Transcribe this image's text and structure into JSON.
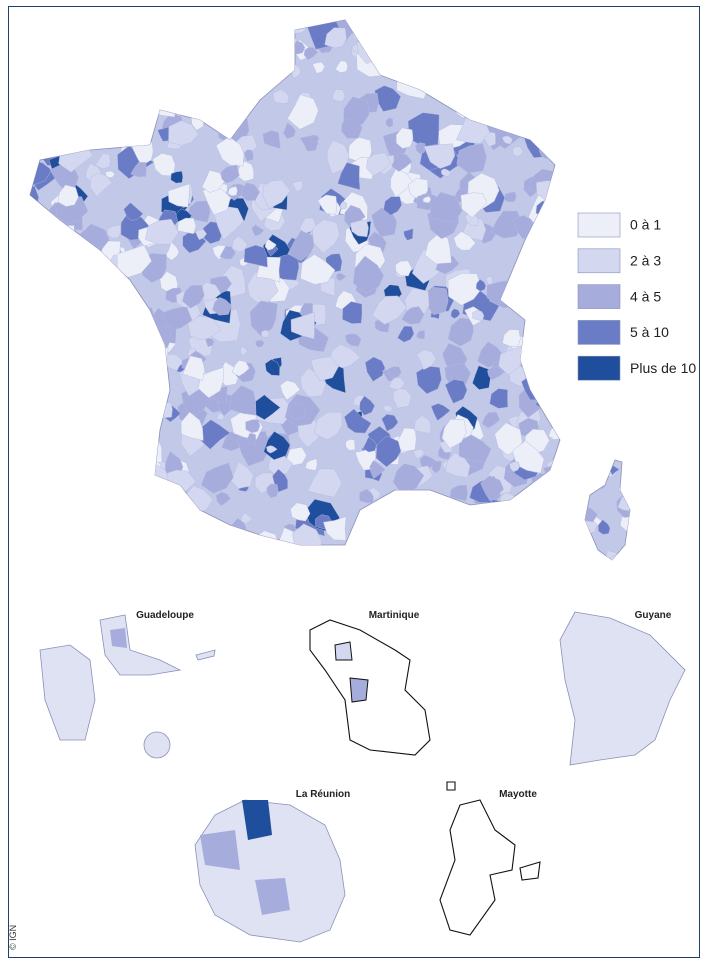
{
  "legend": {
    "items": [
      {
        "label": "0 à 1",
        "color": "#eceef8"
      },
      {
        "label": "2 à 3",
        "color": "#d3d7ef"
      },
      {
        "label": "4 à 5",
        "color": "#a6addd"
      },
      {
        "label": "5 à 10",
        "color": "#6a7cc6"
      },
      {
        "label": "Plus de 10",
        "color": "#1f4e9c"
      }
    ]
  },
  "territories": [
    "Guadeloupe",
    "Martinique",
    "Guyane",
    "La Réunion",
    "Mayotte"
  ],
  "credit": "© IGN"
}
